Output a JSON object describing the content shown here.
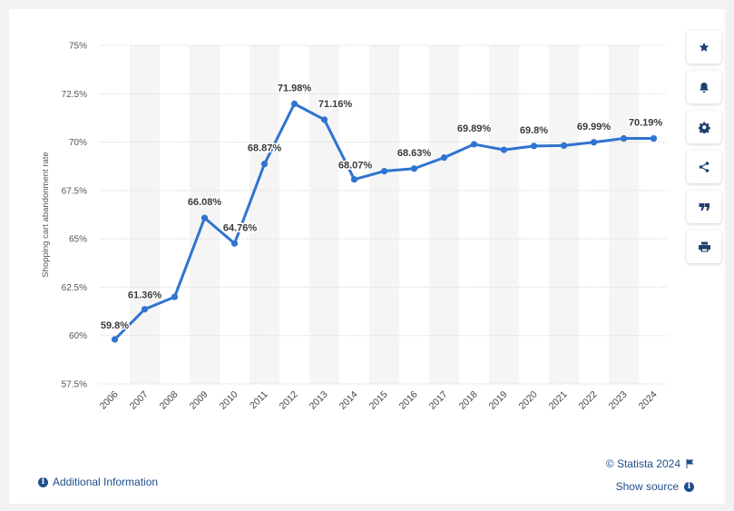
{
  "chart_data": {
    "type": "line",
    "ylabel": "Shopping cart abandonment rate",
    "xlabel": "",
    "categories": [
      "2006",
      "2007",
      "2008",
      "2009",
      "2010",
      "2011",
      "2012",
      "2013",
      "2014",
      "2015",
      "2016",
      "2017",
      "2018",
      "2019",
      "2020",
      "2021",
      "2022",
      "2023",
      "2024"
    ],
    "values": [
      59.8,
      61.36,
      62.0,
      66.08,
      64.76,
      68.87,
      71.98,
      71.16,
      68.07,
      68.5,
      68.63,
      69.2,
      69.89,
      69.6,
      69.8,
      69.82,
      69.99,
      70.19,
      70.19
    ],
    "data_labels": [
      {
        "index": 0,
        "text": "59.8%"
      },
      {
        "index": 1,
        "text": "61.36%"
      },
      {
        "index": 3,
        "text": "66.08%"
      },
      {
        "index": 4,
        "text": "64.76%"
      },
      {
        "index": 5,
        "text": "68.87%"
      },
      {
        "index": 6,
        "text": "71.98%"
      },
      {
        "index": 7,
        "text": "71.16%"
      },
      {
        "index": 8,
        "text": "68.07%"
      },
      {
        "index": 10,
        "text": "68.63%"
      },
      {
        "index": 12,
        "text": "69.89%"
      },
      {
        "index": 14,
        "text": "69.8%"
      },
      {
        "index": 16,
        "text": "69.99%"
      },
      {
        "index": 18,
        "text": "70.19%"
      }
    ],
    "yticks": [
      57.5,
      60,
      62.5,
      65,
      67.5,
      70,
      72.5,
      75
    ],
    "ytick_labels": [
      "57.5%",
      "60%",
      "62.5%",
      "65%",
      "67.5%",
      "70%",
      "72.5%",
      "75%"
    ],
    "ylim": [
      57.5,
      75
    ],
    "grid": true,
    "series_color": "#2f74d0"
  },
  "sidebar": {
    "buttons": [
      {
        "name": "star-button",
        "icon": "star-icon"
      },
      {
        "name": "notification-button",
        "icon": "bell-icon"
      },
      {
        "name": "settings-button",
        "icon": "gear-icon"
      },
      {
        "name": "share-button",
        "icon": "share-icon"
      },
      {
        "name": "cite-button",
        "icon": "quote-icon"
      },
      {
        "name": "print-button",
        "icon": "printer-icon"
      }
    ]
  },
  "footer": {
    "copyright": "© Statista 2024",
    "show_source": "Show source",
    "additional_info": "Additional Information"
  }
}
